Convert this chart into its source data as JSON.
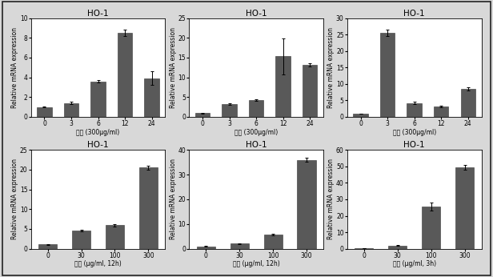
{
  "panels": [
    {
      "title": "HO-1",
      "xlabel": "율금 (300μg/ml)",
      "xtick_labels": [
        "0",
        "3",
        "6",
        "12",
        "24"
      ],
      "values": [
        1.0,
        1.4,
        3.6,
        8.5,
        3.9
      ],
      "errors": [
        0.05,
        0.1,
        0.15,
        0.3,
        0.7
      ],
      "ylim": [
        0,
        10
      ],
      "yticks": [
        0,
        2,
        4,
        6,
        8,
        10
      ]
    },
    {
      "title": "HO-1",
      "xlabel": "황금 (300μg/ml)",
      "xtick_labels": [
        "0",
        "3",
        "6",
        "12",
        "24"
      ],
      "values": [
        1.0,
        3.2,
        4.2,
        15.3,
        13.2
      ],
      "errors": [
        0.1,
        0.2,
        0.2,
        4.5,
        0.4
      ],
      "ylim": [
        0,
        25
      ],
      "yticks": [
        0,
        5,
        10,
        15,
        20,
        25
      ]
    },
    {
      "title": "HO-1",
      "xlabel": "육계 (300μg/ml)",
      "xtick_labels": [
        "0",
        "3",
        "6",
        "12",
        "24"
      ],
      "values": [
        1.0,
        25.5,
        4.2,
        3.2,
        8.5
      ],
      "errors": [
        0.05,
        1.0,
        0.3,
        0.2,
        0.4
      ],
      "ylim": [
        0,
        30
      ],
      "yticks": [
        0,
        5,
        10,
        15,
        20,
        25,
        30
      ]
    },
    {
      "title": "HO-1",
      "xlabel": "율금 (μg/ml, 12h)",
      "xtick_labels": [
        "0",
        "30",
        "100",
        "300"
      ],
      "values": [
        1.1,
        4.5,
        6.0,
        20.5
      ],
      "errors": [
        0.1,
        0.2,
        0.3,
        0.5
      ],
      "ylim": [
        0,
        25
      ],
      "yticks": [
        0,
        5,
        10,
        15,
        20,
        25
      ]
    },
    {
      "title": "HO-1",
      "xlabel": "황금 (μg/ml, 12h)",
      "xtick_labels": [
        "0",
        "30",
        "100",
        "300"
      ],
      "values": [
        1.0,
        2.0,
        5.8,
        36.0
      ],
      "errors": [
        0.1,
        0.15,
        0.3,
        0.8
      ],
      "ylim": [
        0,
        40
      ],
      "yticks": [
        0,
        10,
        20,
        30,
        40
      ]
    },
    {
      "title": "HO-1",
      "xlabel": "육계 (μg/ml, 3h)",
      "xtick_labels": [
        "0",
        "30",
        "100",
        "300"
      ],
      "values": [
        0.5,
        2.0,
        25.5,
        49.5
      ],
      "errors": [
        0.05,
        0.1,
        2.5,
        1.5
      ],
      "ylim": [
        0,
        60
      ],
      "yticks": [
        0,
        10,
        20,
        30,
        40,
        50,
        60
      ]
    }
  ],
  "bar_color": "#595959",
  "bar_width": 0.55,
  "title_fontsize": 7.5,
  "label_fontsize": 5.5,
  "tick_fontsize": 5.5,
  "ylabel": "Relative mRNA expression",
  "figure_facecolor": "#d8d8d8",
  "axes_facecolor": "#ffffff",
  "outer_border_color": "#222222"
}
